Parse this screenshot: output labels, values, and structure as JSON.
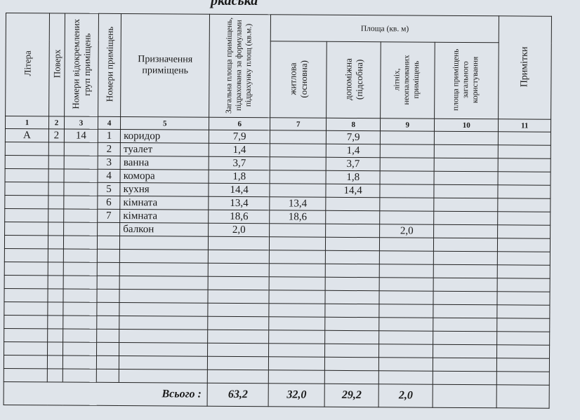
{
  "doc_title_fragment": "ркаська",
  "headers": {
    "c1": "Літера",
    "c2": "Поверх",
    "c3": "Номери відокремлених груп приміщень",
    "c4": "Номери приміщень",
    "c5": "Призначення приміщень",
    "c6": "Загальна площа приміщень, підрахована за формулами підрахунку площ (кв.м.)",
    "area_group": "Площа (кв. м)",
    "c7": "житлова (основна)",
    "c8": "допоміжна (підсобна)",
    "c9": "літніх, неопалюваних приміщень",
    "c10": "площа приміщень загального користування",
    "c11": "Примітки"
  },
  "column_numbers": [
    "1",
    "2",
    "3",
    "4",
    "5",
    "6",
    "7",
    "8",
    "9",
    "10",
    "11"
  ],
  "rows": [
    {
      "c1": "А",
      "c2": "2",
      "c3": "14",
      "c4": "1",
      "c5": "коридор",
      "c6": "7,9",
      "c7": "",
      "c8": "7,9",
      "c9": "",
      "c10": "",
      "c11": ""
    },
    {
      "c1": "",
      "c2": "",
      "c3": "",
      "c4": "2",
      "c5": "туалет",
      "c6": "1,4",
      "c7": "",
      "c8": "1,4",
      "c9": "",
      "c10": "",
      "c11": ""
    },
    {
      "c1": "",
      "c2": "",
      "c3": "",
      "c4": "3",
      "c5": "ванна",
      "c6": "3,7",
      "c7": "",
      "c8": "3,7",
      "c9": "",
      "c10": "",
      "c11": ""
    },
    {
      "c1": "",
      "c2": "",
      "c3": "",
      "c4": "4",
      "c5": "комора",
      "c6": "1,8",
      "c7": "",
      "c8": "1,8",
      "c9": "",
      "c10": "",
      "c11": ""
    },
    {
      "c1": "",
      "c2": "",
      "c3": "",
      "c4": "5",
      "c5": "кухня",
      "c6": "14,4",
      "c7": "",
      "c8": "14,4",
      "c9": "",
      "c10": "",
      "c11": ""
    },
    {
      "c1": "",
      "c2": "",
      "c3": "",
      "c4": "6",
      "c5": "кімната",
      "c6": "13,4",
      "c7": "13,4",
      "c8": "",
      "c9": "",
      "c10": "",
      "c11": ""
    },
    {
      "c1": "",
      "c2": "",
      "c3": "",
      "c4": "7",
      "c5": "кімната",
      "c6": "18,6",
      "c7": "18,6",
      "c8": "",
      "c9": "",
      "c10": "",
      "c11": ""
    },
    {
      "c1": "",
      "c2": "",
      "c3": "",
      "c4": "",
      "c5": "балкон",
      "c6": "2,0",
      "c7": "",
      "c8": "",
      "c9": "2,0",
      "c10": "",
      "c11": ""
    }
  ],
  "empty_row_count": 11,
  "total": {
    "label": "Всього :",
    "c6": "63,2",
    "c7": "32,0",
    "c8": "29,2",
    "c9": "2,0"
  }
}
